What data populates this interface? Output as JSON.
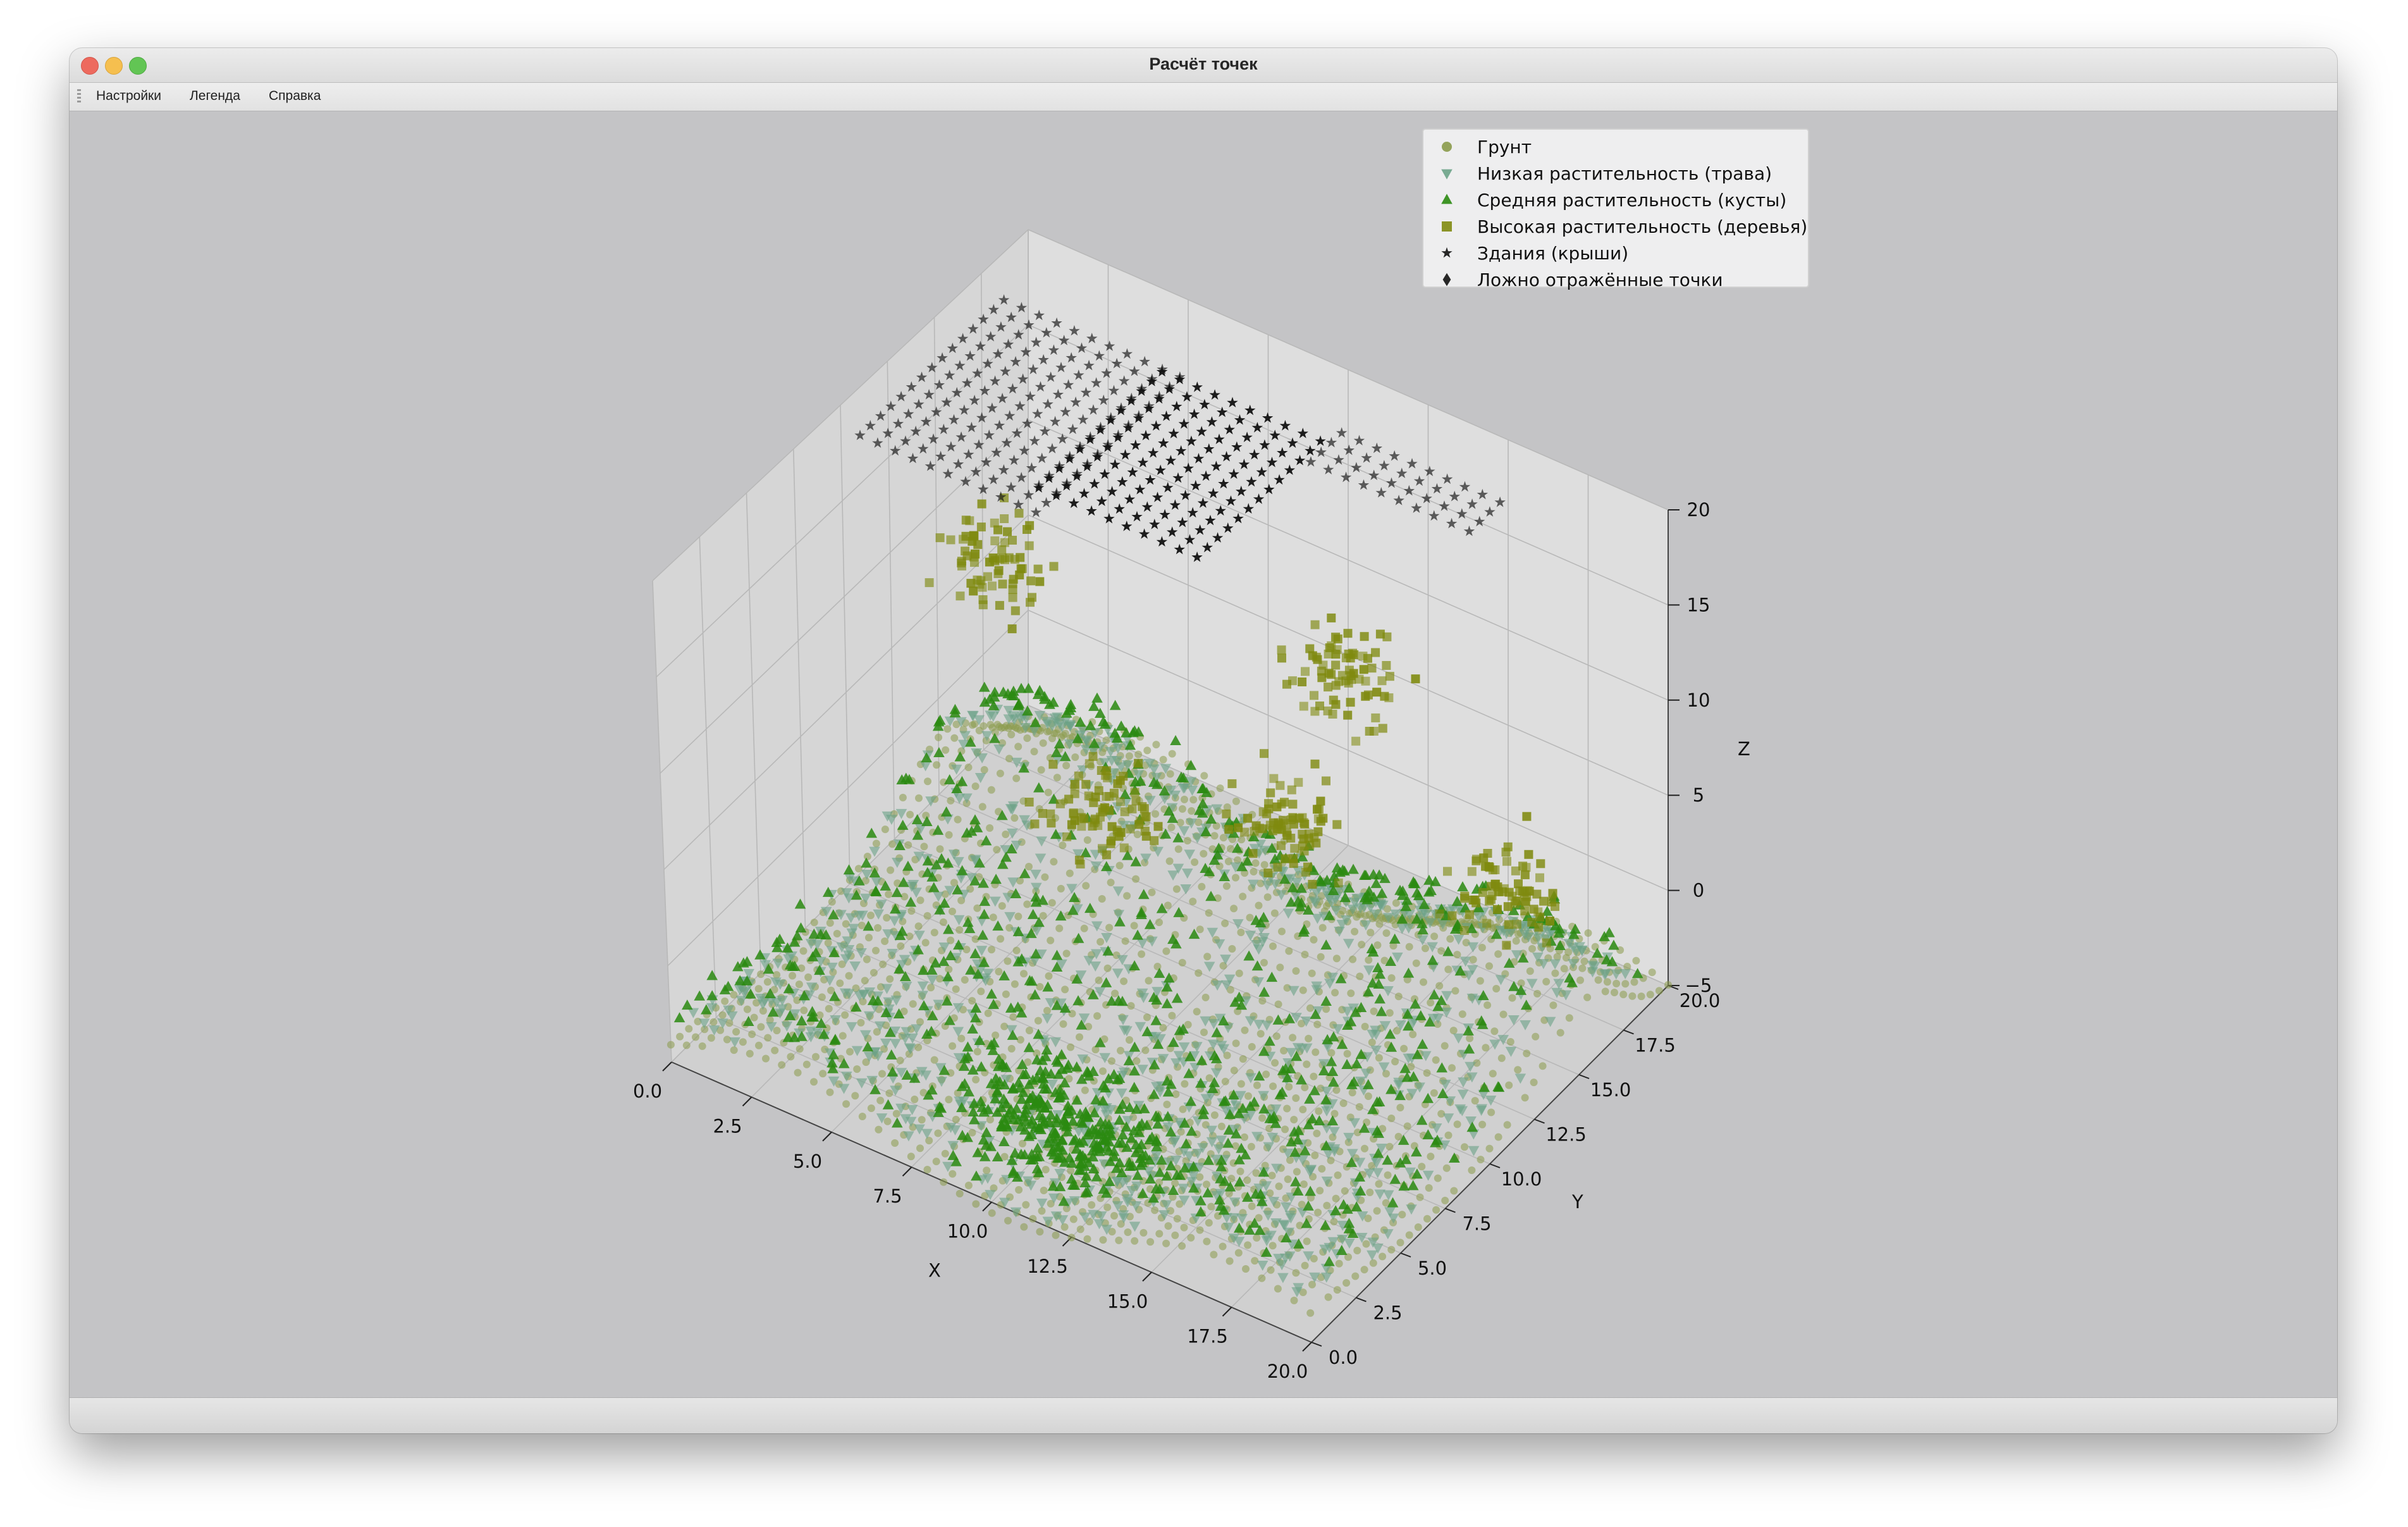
{
  "window": {
    "title": "Расчёт точек",
    "menu": [
      {
        "id": "settings",
        "label": "Настройки"
      },
      {
        "id": "legend",
        "label": "Легенда"
      },
      {
        "id": "help",
        "label": "Справка"
      }
    ]
  },
  "chart_data": {
    "type": "scatter",
    "projection": "3d",
    "xlabel": "X",
    "ylabel": "Y",
    "zlabel": "Z",
    "xlim": [
      0,
      20
    ],
    "ylim": [
      0,
      20
    ],
    "zlim": [
      -5,
      20
    ],
    "x_ticks": [
      "0.0",
      "2.5",
      "5.0",
      "7.5",
      "10.0",
      "12.5",
      "15.0",
      "17.5",
      "20.0"
    ],
    "y_ticks": [
      "0.0",
      "2.5",
      "5.0",
      "7.5",
      "10.0",
      "12.5",
      "15.0",
      "17.5",
      "20.0"
    ],
    "z_ticks": [
      "−5",
      "0",
      "5",
      "10",
      "15",
      "20"
    ],
    "grid": true,
    "legend_position": "top-right",
    "series": [
      {
        "name": "Грунт",
        "marker": "circle",
        "color": "#8a9a4a"
      },
      {
        "name": "Низкая растительность (трава)",
        "marker": "triangle-down",
        "color": "#6aa287"
      },
      {
        "name": "Средняя растительность (кусты)",
        "marker": "triangle-up",
        "color": "#2a8a10"
      },
      {
        "name": "Высокая растительность (деревья)",
        "marker": "square",
        "color": "#7f8a0f"
      },
      {
        "name": "Здания (крыши)",
        "marker": "star",
        "color": "#111111"
      },
      {
        "name": "Ложно отражённые точки",
        "marker": "diamond",
        "color": "#111111"
      }
    ],
    "clusters": {
      "buildings": [
        {
          "x": [
            0,
            6
          ],
          "y": [
            11,
            19
          ],
          "z": 17.5
        },
        {
          "x": [
            5,
            10
          ],
          "y": [
            12,
            19
          ],
          "z": 17.5
        },
        {
          "x": [
            10,
            15
          ],
          "y": [
            18,
            20
          ],
          "z": 17
        }
      ],
      "trees": [
        {
          "cx": 1.5,
          "cy": 15.5,
          "cz": 8,
          "r": 1.5
        },
        {
          "cx": 7.5,
          "cy": 11,
          "cz": 3.5,
          "r": 1.7
        },
        {
          "cx": 11,
          "cy": 15,
          "cz": 1.5,
          "r": 1.6
        },
        {
          "cx": 10.5,
          "cy": 19,
          "cz": 5,
          "r": 1.6
        },
        {
          "cx": 16,
          "cy": 18,
          "cz": -1,
          "r": 1.5
        }
      ]
    }
  }
}
